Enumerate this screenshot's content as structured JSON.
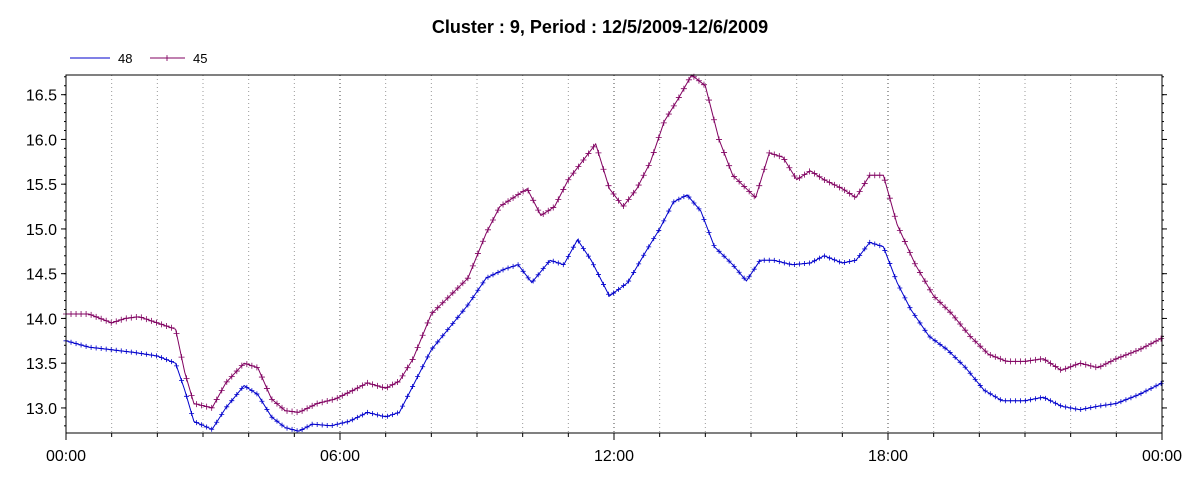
{
  "chart_data": {
    "type": "line",
    "title": "Cluster : 9, Period : 12/5/2009-12/6/2009",
    "xlabel": "",
    "ylabel": "",
    "x_ticks": [
      "00:00",
      "06:00",
      "12:00",
      "18:00",
      "00:00"
    ],
    "y_ticks": [
      "13.0",
      "13.5",
      "14.0",
      "14.5",
      "15.0",
      "15.5",
      "16.0",
      "16.5"
    ],
    "xlim_hours": [
      0,
      24
    ],
    "ylim": [
      12.72,
      16.72
    ],
    "grid": {
      "minor_x_every_hours": 1,
      "major_x_every_hours": 6
    },
    "legend_position": "top-left",
    "series": [
      {
        "name": "48",
        "color": "#0000cc",
        "points": [
          [
            0,
            13.75
          ],
          [
            0.5,
            13.68
          ],
          [
            1,
            13.65
          ],
          [
            1.5,
            13.62
          ],
          [
            2,
            13.58
          ],
          [
            2.4,
            13.5
          ],
          [
            2.6,
            13.2
          ],
          [
            2.8,
            12.85
          ],
          [
            3.2,
            12.76
          ],
          [
            3.5,
            13.0
          ],
          [
            3.9,
            13.25
          ],
          [
            4.2,
            13.15
          ],
          [
            4.5,
            12.9
          ],
          [
            4.8,
            12.78
          ],
          [
            5.1,
            12.74
          ],
          [
            5.4,
            12.82
          ],
          [
            5.8,
            12.8
          ],
          [
            6.2,
            12.85
          ],
          [
            6.6,
            12.95
          ],
          [
            7,
            12.9
          ],
          [
            7.3,
            12.95
          ],
          [
            7.6,
            13.25
          ],
          [
            8,
            13.65
          ],
          [
            8.4,
            13.9
          ],
          [
            8.8,
            14.15
          ],
          [
            9.2,
            14.45
          ],
          [
            9.6,
            14.55
          ],
          [
            9.9,
            14.6
          ],
          [
            10.2,
            14.4
          ],
          [
            10.6,
            14.65
          ],
          [
            10.9,
            14.6
          ],
          [
            11.2,
            14.88
          ],
          [
            11.5,
            14.65
          ],
          [
            11.9,
            14.25
          ],
          [
            12.3,
            14.4
          ],
          [
            12.7,
            14.75
          ],
          [
            13,
            15.0
          ],
          [
            13.3,
            15.3
          ],
          [
            13.6,
            15.38
          ],
          [
            13.9,
            15.2
          ],
          [
            14.2,
            14.8
          ],
          [
            14.6,
            14.6
          ],
          [
            14.9,
            14.42
          ],
          [
            15.2,
            14.65
          ],
          [
            15.5,
            14.65
          ],
          [
            15.9,
            14.6
          ],
          [
            16.3,
            14.62
          ],
          [
            16.6,
            14.7
          ],
          [
            17,
            14.62
          ],
          [
            17.3,
            14.65
          ],
          [
            17.6,
            14.85
          ],
          [
            17.9,
            14.8
          ],
          [
            18.2,
            14.4
          ],
          [
            18.5,
            14.1
          ],
          [
            18.9,
            13.8
          ],
          [
            19.3,
            13.65
          ],
          [
            19.7,
            13.45
          ],
          [
            20.1,
            13.2
          ],
          [
            20.5,
            13.08
          ],
          [
            21,
            13.08
          ],
          [
            21.4,
            13.12
          ],
          [
            21.8,
            13.02
          ],
          [
            22.2,
            12.98
          ],
          [
            22.6,
            13.02
          ],
          [
            23,
            13.05
          ],
          [
            23.5,
            13.15
          ],
          [
            24,
            13.28
          ]
        ]
      },
      {
        "name": "45",
        "color": "#800060",
        "points": [
          [
            0,
            14.05
          ],
          [
            0.5,
            14.05
          ],
          [
            1,
            13.95
          ],
          [
            1.3,
            14.0
          ],
          [
            1.6,
            14.02
          ],
          [
            2,
            13.95
          ],
          [
            2.4,
            13.88
          ],
          [
            2.6,
            13.4
          ],
          [
            2.8,
            13.05
          ],
          [
            3.2,
            13.0
          ],
          [
            3.5,
            13.28
          ],
          [
            3.9,
            13.5
          ],
          [
            4.2,
            13.45
          ],
          [
            4.5,
            13.1
          ],
          [
            4.8,
            12.97
          ],
          [
            5.1,
            12.95
          ],
          [
            5.5,
            13.05
          ],
          [
            5.9,
            13.1
          ],
          [
            6.3,
            13.2
          ],
          [
            6.6,
            13.28
          ],
          [
            7,
            13.22
          ],
          [
            7.3,
            13.3
          ],
          [
            7.6,
            13.55
          ],
          [
            8,
            14.05
          ],
          [
            8.4,
            14.25
          ],
          [
            8.8,
            14.45
          ],
          [
            9.2,
            14.95
          ],
          [
            9.5,
            15.25
          ],
          [
            9.8,
            15.35
          ],
          [
            10.1,
            15.45
          ],
          [
            10.4,
            15.15
          ],
          [
            10.7,
            15.25
          ],
          [
            11,
            15.55
          ],
          [
            11.3,
            15.75
          ],
          [
            11.6,
            15.95
          ],
          [
            11.9,
            15.45
          ],
          [
            12.2,
            15.25
          ],
          [
            12.5,
            15.45
          ],
          [
            12.8,
            15.75
          ],
          [
            13.1,
            16.2
          ],
          [
            13.4,
            16.45
          ],
          [
            13.7,
            16.72
          ],
          [
            14,
            16.6
          ],
          [
            14.3,
            16.0
          ],
          [
            14.6,
            15.6
          ],
          [
            14.9,
            15.45
          ],
          [
            15.1,
            15.35
          ],
          [
            15.4,
            15.85
          ],
          [
            15.7,
            15.8
          ],
          [
            16,
            15.55
          ],
          [
            16.3,
            15.65
          ],
          [
            16.6,
            15.55
          ],
          [
            17,
            15.45
          ],
          [
            17.3,
            15.35
          ],
          [
            17.6,
            15.6
          ],
          [
            17.9,
            15.6
          ],
          [
            18.2,
            15.05
          ],
          [
            18.6,
            14.6
          ],
          [
            19,
            14.25
          ],
          [
            19.4,
            14.05
          ],
          [
            19.8,
            13.8
          ],
          [
            20.2,
            13.6
          ],
          [
            20.6,
            13.52
          ],
          [
            21,
            13.52
          ],
          [
            21.4,
            13.55
          ],
          [
            21.8,
            13.42
          ],
          [
            22.2,
            13.5
          ],
          [
            22.6,
            13.45
          ],
          [
            23,
            13.55
          ],
          [
            23.5,
            13.65
          ],
          [
            24,
            13.78
          ]
        ]
      }
    ]
  }
}
